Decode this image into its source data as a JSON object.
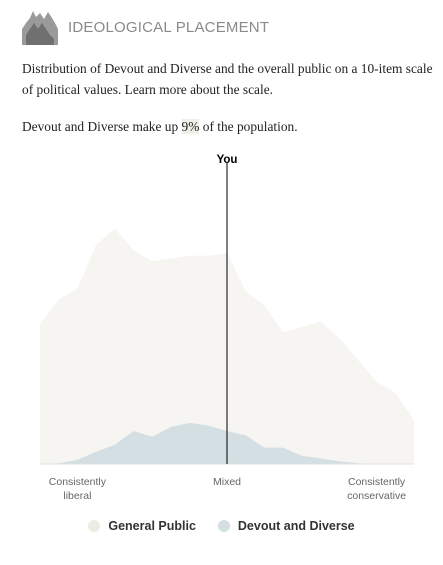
{
  "header": {
    "title": "IDEOLOGICAL PLACEMENT",
    "icon": "mountain-icon"
  },
  "description": {
    "text": "Distribution of Devout and Diverse and the overall public on a 10-item scale of political values.",
    "link": "Learn more about the scale."
  },
  "population": {
    "prefix": "Devout and Diverse make up",
    "value": "9%",
    "suffix": "of the population."
  },
  "chart_data": {
    "type": "area",
    "x_range": [
      0,
      20
    ],
    "y_range": [
      0,
      100
    ],
    "x": [
      0,
      1,
      2,
      3,
      4,
      5,
      6,
      7,
      8,
      9,
      10,
      11,
      12,
      13,
      14,
      15,
      16,
      17,
      18,
      19,
      20
    ],
    "series": [
      {
        "name": "General Public",
        "color": "#f6f5f1",
        "values": [
          51,
          60,
          64,
          80,
          86,
          78,
          74,
          75,
          76,
          76,
          77,
          63,
          58,
          48,
          50,
          52,
          46,
          38,
          30,
          26,
          16
        ]
      },
      {
        "name": "Devout and Diverse",
        "color": "#d3dfe2",
        "values": [
          0,
          0.3,
          1.5,
          4.5,
          7,
          12,
          10,
          13.5,
          15,
          14,
          12,
          10.5,
          6,
          6,
          3,
          2,
          1,
          0.3,
          0,
          0,
          0
        ]
      }
    ],
    "marker": {
      "label": "You",
      "x": 10
    },
    "tick_labels": [
      {
        "x": 2,
        "lines": [
          "Consistently",
          "liberal"
        ]
      },
      {
        "x": 10,
        "lines": [
          "Mixed"
        ]
      },
      {
        "x": 18,
        "lines": [
          "Consistently",
          "conservative"
        ]
      }
    ],
    "grid": false,
    "legend_position": "bottom"
  },
  "legend": [
    {
      "label": "General Public",
      "color": "#ecebe4"
    },
    {
      "label": "Devout and Diverse",
      "color": "#d3dfe2"
    }
  ]
}
